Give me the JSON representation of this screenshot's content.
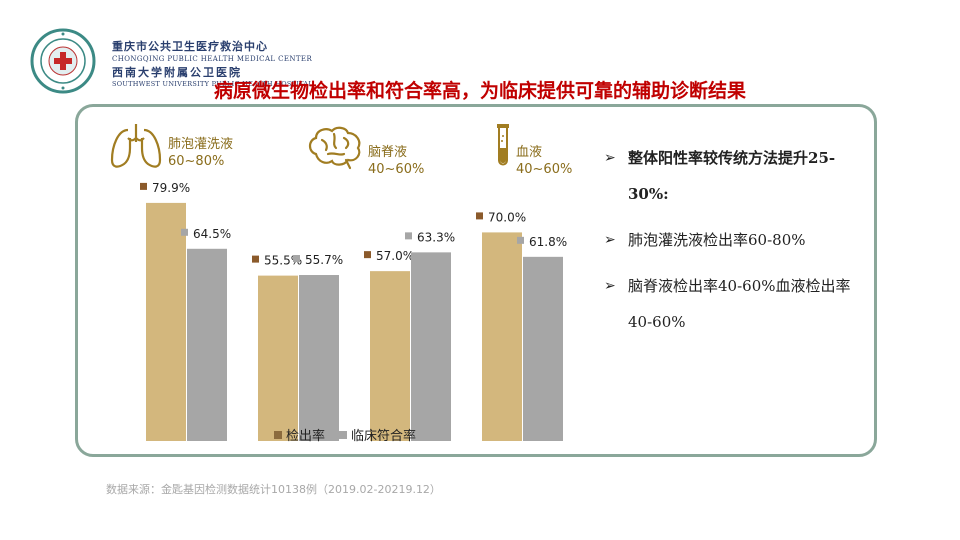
{
  "header": {
    "org_cn": "重庆市公共卫生医疗救治中心",
    "org_en": "CHONGQING PUBLIC HEALTH MEDICAL CENTER",
    "univ_cn": "西南大学附属公卫医院",
    "univ_en": "SOUTHWEST UNIVERSITY PUBLIC HEALTH HOSPITAL"
  },
  "headline": "病原微生物检出率和符合率高，为临床提供可靠的辅助诊断结果",
  "samples": [
    {
      "name": "肺泡灌洗液",
      "range": "60~80%",
      "icon": "lungs-icon"
    },
    {
      "name": "脑脊液",
      "range": "40~60%",
      "icon": "brain-icon"
    },
    {
      "name": "血液",
      "range": "40~60%",
      "icon": "test-tube-icon"
    }
  ],
  "chart_data": {
    "type": "bar",
    "categories": [
      "",
      "",
      "",
      ""
    ],
    "series": [
      {
        "name": "检出率",
        "values": [
          79.9,
          55.5,
          57.0,
          70.0
        ],
        "labels": [
          "79.9%",
          "55.5%",
          "57.0%",
          "70.0%"
        ],
        "color": "#d3b77d"
      },
      {
        "name": "临床符合率",
        "values": [
          64.5,
          55.7,
          63.3,
          61.8
        ],
        "labels": [
          "64.5%",
          "55.7%",
          "63.3%",
          "61.8%"
        ],
        "color": "#a6a6a6"
      }
    ],
    "ylim": [
      0,
      100
    ],
    "grid": false,
    "legend": "bottom"
  },
  "bullets": [
    {
      "text": "整体阳性率较传统方法提升25-30%:",
      "bold": true
    },
    {
      "text": "肺泡灌洗液检出率60-80%",
      "bold": false
    },
    {
      "text": "脑脊液检出率40-60%血液检出率40-60%",
      "bold": false
    }
  ],
  "source": "数据来源：金匙基因检测数据统计10138例（2019.02-20219.12）",
  "colors": {
    "headline": "#c00000",
    "panel_border": "#8aa79a",
    "icon": "#8a6d1c",
    "label_marker": "#8b5a2b"
  }
}
